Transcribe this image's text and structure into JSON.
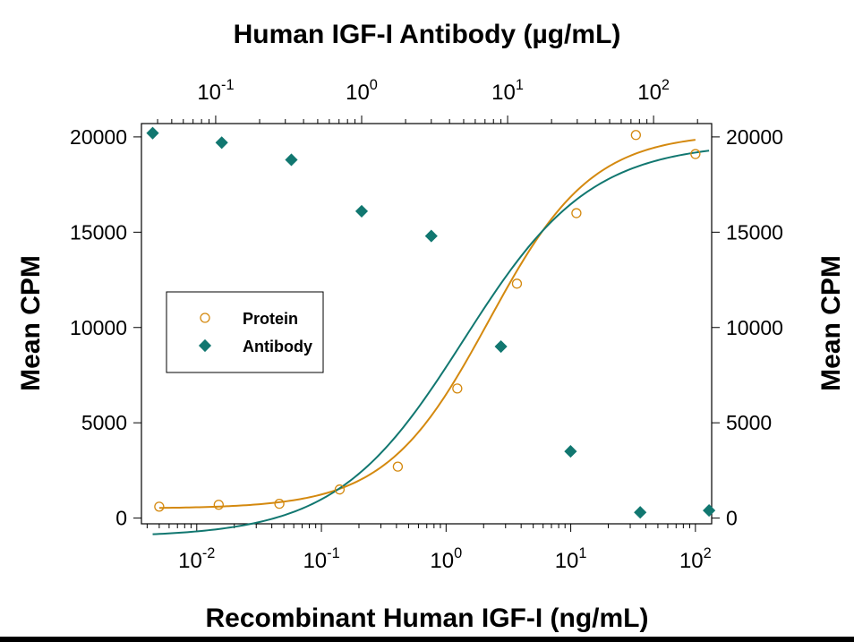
{
  "chart_data": {
    "type": "scatter",
    "top_title": "Human IGF-I Antibody (µg/mL)",
    "xlabel": "Recombinant Human IGF-I (ng/mL)",
    "ylabel_left": "Mean CPM",
    "ylabel_right": "Mean CPM",
    "x_scale": "log",
    "xlim": [
      0.0036,
      135
    ],
    "ylim": [
      -300,
      20700
    ],
    "x_ticks": [
      {
        "value": 0.01,
        "base": "10",
        "exp": "-2"
      },
      {
        "value": 0.1,
        "base": "10",
        "exp": "-1"
      },
      {
        "value": 1,
        "base": "10",
        "exp": "0"
      },
      {
        "value": 10,
        "base": "10",
        "exp": "1"
      },
      {
        "value": 100,
        "base": "10",
        "exp": "2"
      }
    ],
    "top_xlim": [
      0.031,
      250
    ],
    "top_ticks": [
      {
        "value": 0.1,
        "base": "10",
        "exp": "-1"
      },
      {
        "value": 1,
        "base": "10",
        "exp": "0"
      },
      {
        "value": 10,
        "base": "10",
        "exp": "1"
      },
      {
        "value": 100,
        "base": "10",
        "exp": "2"
      }
    ],
    "y_ticks": [
      0,
      5000,
      10000,
      15000,
      20000
    ],
    "y_tick_labels": [
      "0",
      "5000",
      "10000",
      "15000",
      "20000"
    ],
    "legend_position": "center-left",
    "series": [
      {
        "name": "Protein",
        "marker": "open-circle",
        "color": "#D4890F",
        "x_axis": "bottom",
        "x": [
          0.005,
          0.015,
          0.046,
          0.14,
          0.41,
          1.23,
          3.7,
          11.1,
          33.3,
          100
        ],
        "y": [
          600,
          700,
          750,
          1500,
          2700,
          6800,
          12300,
          16000,
          20100,
          19100
        ],
        "fit": {
          "model": "4PL",
          "bottom": 500,
          "top": 20200,
          "ec50": 2.2,
          "hill": 1.05
        }
      },
      {
        "name": "Antibody",
        "marker": "filled-diamond",
        "color": "#117770",
        "x_axis": "top",
        "x": [
          0.037,
          0.11,
          0.33,
          1.0,
          3.0,
          9.0,
          27,
          81,
          240
        ],
        "y": [
          20200,
          19700,
          18800,
          16100,
          14800,
          9000,
          3500,
          300,
          400
        ],
        "fit": {
          "model": "4PL",
          "bottom": -1000,
          "top": 19700,
          "ec50": 5.0,
          "hill": 1.0
        }
      }
    ]
  }
}
